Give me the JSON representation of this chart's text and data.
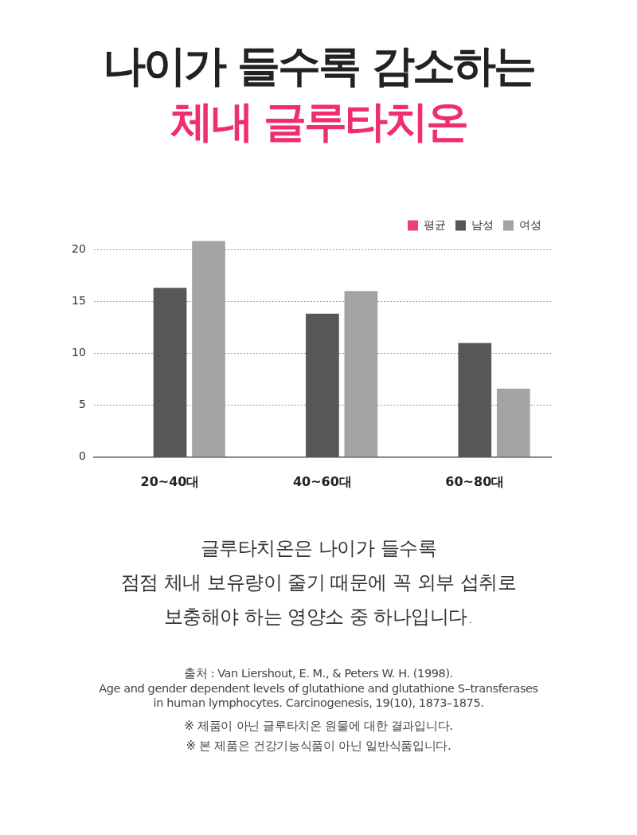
{
  "chart_data": {
    "type": "bar",
    "title": "나이가 들수록 감소하는\n체내 글루타치온",
    "categories": [
      "20~40대",
      "40~60대",
      "60~80대"
    ],
    "series": [
      {
        "name": "평균",
        "color": "#ef3f78",
        "values": [
          null,
          null,
          null
        ]
      },
      {
        "name": "남성",
        "color": "#575757",
        "values": [
          16.3,
          13.8,
          11
        ]
      },
      {
        "name": "여성",
        "color": "#a4a4a4",
        "values": [
          20.8,
          16,
          6.6
        ]
      }
    ],
    "ylim": [
      0,
      21
    ],
    "yticks": [
      0,
      5,
      10,
      15,
      20
    ],
    "grid": "y",
    "legend": "top right",
    "annotations": [
      "글루타치온은 나이가 들수록\n점점 체내 보유량이 줄기 때문에 꼭 외부 섭취로\n보충해야 하는 영양소 중 하나입니다.",
      "출처 : Van Liershout, E. M., & Peters W. H. (1998).\nAge and gender dependent levels of glutathione and glutathione S–transferases\nin human lymphocytes. Carcinogenesis, 19(10), 1873–1875.",
      "※ 제품이 아닌 글루타치온 원물에 대한 결과입니다.",
      "※ 본 제품은 건강기능식품이 아닌 일반식품입니다."
    ]
  }
}
